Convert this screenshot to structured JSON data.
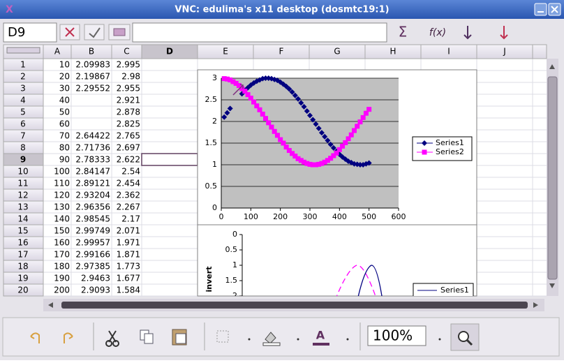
{
  "window": {
    "title": "VNC: edulima's x11 desktop (dosmtc19:1)"
  },
  "formula_bar": {
    "name_box": "D9",
    "sum_symbol": "Σ",
    "function_symbol": "f(x)"
  },
  "sheet": {
    "columns": [
      "A",
      "B",
      "C",
      "D",
      "E",
      "F",
      "G",
      "H",
      "I",
      "J"
    ],
    "row_labels": [
      1,
      2,
      3,
      4,
      5,
      6,
      7,
      8,
      9,
      10,
      11,
      12,
      13,
      14,
      15,
      16,
      17,
      18,
      19,
      20
    ],
    "selected_row": 8,
    "selected_column": 3,
    "rows": [
      [
        10,
        2.09983,
        2.995
      ],
      [
        20,
        2.19867,
        2.98
      ],
      [
        30,
        2.29552,
        2.955
      ],
      [
        40,
        null,
        2.921
      ],
      [
        50,
        null,
        2.878
      ],
      [
        60,
        null,
        2.825
      ],
      [
        70,
        2.64422,
        2.765
      ],
      [
        80,
        2.71736,
        2.697
      ],
      [
        90,
        2.78333,
        2.622
      ],
      [
        100,
        2.84147,
        2.54
      ],
      [
        110,
        2.89121,
        2.454
      ],
      [
        120,
        2.93204,
        2.362
      ],
      [
        130,
        2.96356,
        2.267
      ],
      [
        140,
        2.98545,
        2.17
      ],
      [
        150,
        2.99749,
        2.071
      ],
      [
        160,
        2.99957,
        1.971
      ],
      [
        170,
        2.99166,
        1.871
      ],
      [
        180,
        2.97385,
        1.773
      ],
      [
        190,
        2.9463,
        1.677
      ],
      [
        200,
        2.9093,
        1.584
      ]
    ]
  },
  "zoom": "100%",
  "chart_data": [
    {
      "type": "scatter",
      "x": [
        10,
        20,
        30,
        40,
        50,
        60,
        70,
        80,
        90,
        100,
        110,
        120,
        130,
        140,
        150,
        160,
        170,
        180,
        190,
        200,
        210,
        220,
        230,
        240,
        250,
        260,
        270,
        280,
        290,
        300,
        310,
        320,
        330,
        340,
        350,
        360,
        370,
        380,
        390,
        400,
        410,
        420,
        430,
        440,
        450,
        460,
        470,
        480,
        490,
        500
      ],
      "series": [
        {
          "name": "Series1",
          "color": "#000080",
          "marker": "diamond",
          "values": [
            2.1,
            2.2,
            2.3,
            null,
            null,
            null,
            2.64,
            2.72,
            2.78,
            2.84,
            2.89,
            2.93,
            2.96,
            2.99,
            3.0,
            3.0,
            2.99,
            2.97,
            2.95,
            2.91,
            2.86,
            2.81,
            2.75,
            2.68,
            2.6,
            2.52,
            2.43,
            2.34,
            2.24,
            2.14,
            2.04,
            1.94,
            1.84,
            1.74,
            1.65,
            1.56,
            1.47,
            1.39,
            1.31,
            1.24,
            1.18,
            1.13,
            1.08,
            1.05,
            1.02,
            1.01,
            1.0,
            1.0,
            1.02,
            1.04
          ]
        },
        {
          "name": "Series2",
          "color": "#ff00ff",
          "marker": "square",
          "values": [
            2.99,
            2.98,
            2.96,
            2.92,
            2.88,
            2.83,
            2.76,
            2.7,
            2.62,
            2.54,
            2.45,
            2.36,
            2.27,
            2.17,
            2.07,
            1.97,
            1.87,
            1.77,
            1.68,
            1.58,
            1.5,
            1.41,
            1.33,
            1.26,
            1.2,
            1.14,
            1.1,
            1.06,
            1.03,
            1.01,
            1.0,
            1.0,
            1.01,
            1.03,
            1.06,
            1.1,
            1.15,
            1.21,
            1.27,
            1.35,
            1.43,
            1.51,
            1.6,
            1.69,
            1.79,
            1.89,
            1.99,
            2.09,
            2.19,
            2.28
          ]
        }
      ],
      "xlim": [
        0,
        600
      ],
      "xticks": [
        0,
        100,
        200,
        300,
        400,
        500,
        600
      ],
      "ylim": [
        0,
        3
      ],
      "yticks": [
        0,
        0.5,
        1,
        1.5,
        2,
        2.5,
        3
      ],
      "grid": true,
      "legend": "right"
    },
    {
      "type": "line",
      "y_label": "invert",
      "ylim": [
        0,
        2
      ],
      "yticks": [
        0,
        0.5,
        1,
        1.5,
        2
      ],
      "y_reversed": true,
      "series": [
        {
          "name": "Series1",
          "color": "#000080"
        }
      ],
      "legend": "right"
    }
  ]
}
